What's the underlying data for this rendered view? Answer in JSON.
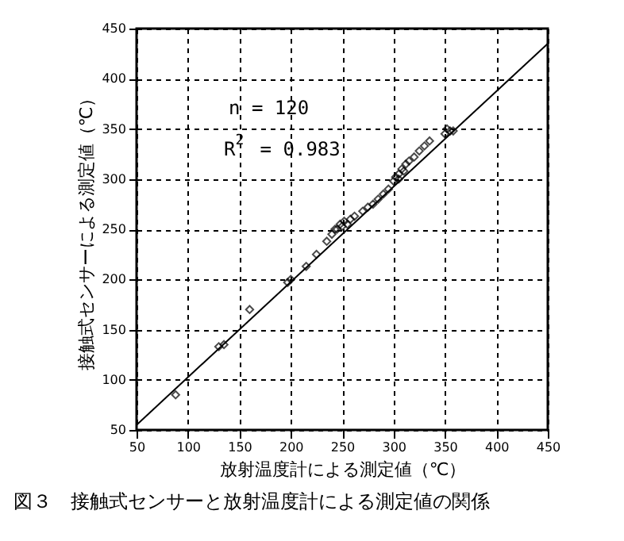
{
  "chart_data": {
    "type": "scatter",
    "title": "図３　接触式センサーと放射温度計による測定値の関係",
    "xlabel": "放射温度計による測定値（℃）",
    "ylabel": "接触式センサーによる測定値（℃）",
    "annotations": [
      "n = 120",
      "R$^{2}$ = 0.983"
    ],
    "xlim": [
      50,
      450
    ],
    "ylim": [
      50,
      450
    ],
    "xticks": [
      50,
      100,
      150,
      200,
      250,
      300,
      350,
      400,
      450
    ],
    "yticks": [
      50,
      100,
      150,
      200,
      250,
      300,
      350,
      400,
      450
    ],
    "grid": true,
    "series": [
      {
        "marker": "diamond",
        "color": "#000000",
        "x": [
          88,
          130,
          135,
          160,
          197,
          200,
          215,
          225,
          235,
          240,
          243,
          245,
          248,
          250,
          252,
          255,
          258,
          262,
          270,
          275,
          280,
          285,
          290,
          295,
          300,
          302,
          305,
          305,
          308,
          310,
          312,
          315,
          320,
          325,
          330,
          335,
          350,
          352,
          355,
          358
        ],
        "values": [
          85,
          133,
          135,
          170,
          197,
          200,
          213,
          225,
          238,
          245,
          250,
          250,
          255,
          253,
          258,
          255,
          260,
          263,
          268,
          272,
          275,
          280,
          285,
          290,
          298,
          302,
          305,
          300,
          310,
          308,
          315,
          318,
          322,
          328,
          333,
          338,
          345,
          350,
          348,
          348
        ]
      },
      {
        "type": "line",
        "color": "#000000",
        "x": [
          50,
          450
        ],
        "values": [
          55,
          435
        ]
      }
    ]
  }
}
